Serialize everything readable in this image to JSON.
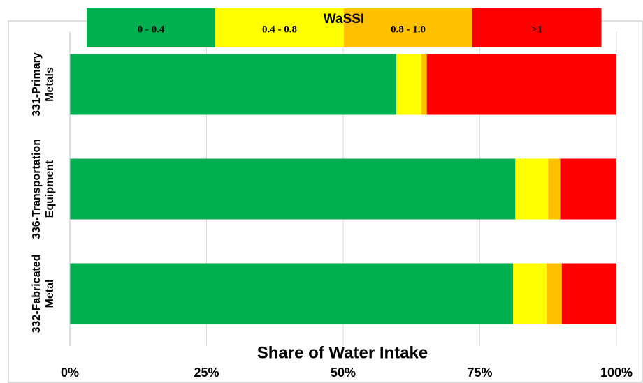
{
  "chart_data": {
    "type": "stacked_barh",
    "xlabel": "Share of Water Intake",
    "legend_title": "WaSSI",
    "legend_position": "top",
    "categories": [
      "331-Primary Metals",
      "336-Transportation Equipment",
      "332-Fabricated Metal"
    ],
    "series": [
      {
        "name": "0 - 0.4",
        "color": "#00b050",
        "values": [
          59.7,
          81.5,
          81.1
        ]
      },
      {
        "name": "0.4 - 0.8",
        "color": "#ffff00",
        "values": [
          4.6,
          6.0,
          6.1
        ]
      },
      {
        "name": "0.8 - 1.0",
        "color": "#ffc000",
        "values": [
          1.0,
          2.2,
          2.8
        ]
      },
      {
        "name": ">1",
        "color": "#ff0000",
        "values": [
          34.7,
          10.3,
          10.0
        ]
      }
    ],
    "xlim": [
      0,
      100
    ],
    "xticks": [
      {
        "value": 0,
        "label": "0%"
      },
      {
        "value": 25,
        "label": "25%"
      },
      {
        "value": 50,
        "label": "50%"
      },
      {
        "value": 75,
        "label": "75%"
      },
      {
        "value": 100,
        "label": "100%"
      }
    ],
    "grid": true
  }
}
